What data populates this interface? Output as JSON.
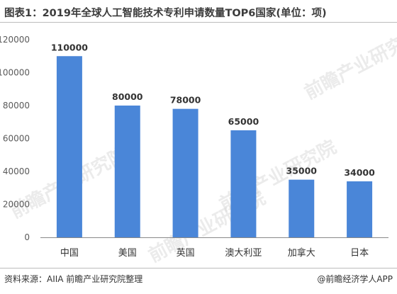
{
  "title": "图表1：2019年全球人工智能技术专利申请数量TOP6国家(单位：项)",
  "source": "资料来源：AIIA 前瞻产业研究院整理",
  "credit": "@前瞻经济学人APP",
  "watermark": "前瞻产业研究院",
  "colors": {
    "bar": "#4a86d8",
    "axis_text": "#5a5a5a",
    "label": "#333333",
    "axis_line": "#888888"
  },
  "chart_data": {
    "type": "bar",
    "categories": [
      "中国",
      "美国",
      "英国",
      "澳大利亚",
      "加拿大",
      "日本"
    ],
    "values": [
      110000,
      80000,
      78000,
      65000,
      35000,
      34000
    ],
    "data_labels": [
      "110000",
      "80000",
      "78000",
      "65000",
      "35000",
      "34000"
    ],
    "yticks": [
      0,
      20000,
      40000,
      60000,
      80000,
      100000,
      120000
    ],
    "ylim": [
      0,
      120000
    ],
    "grid": false,
    "legend": false
  }
}
